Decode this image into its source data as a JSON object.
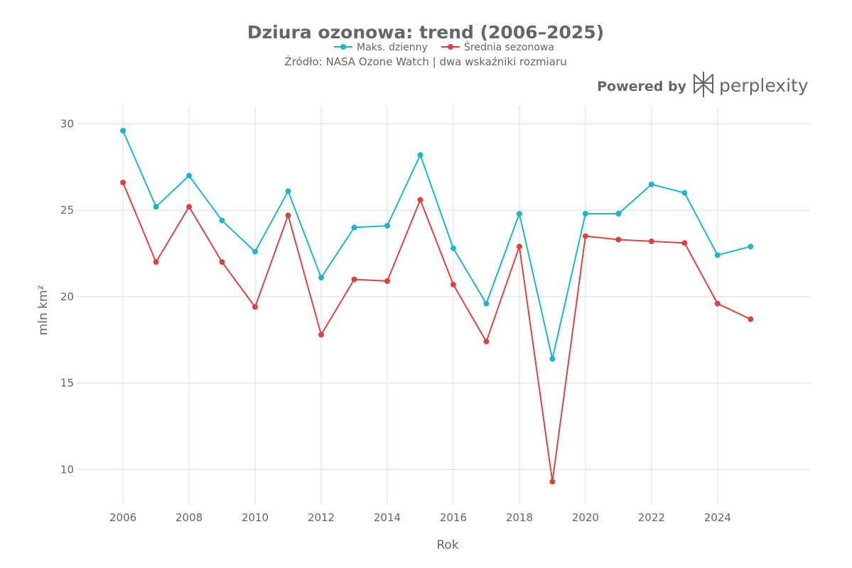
{
  "colors": {
    "series_max": "#1fb4c8",
    "series_mean": "#d64545",
    "text": "#666666",
    "grid": "#dcdcdc"
  },
  "branding": {
    "powered_by": "Powered by",
    "name": "perplexity",
    "icon": "perplexity-logo-icon"
  },
  "chart_data": {
    "type": "line",
    "title": "Dziura ozonowa: trend (2006–2025)",
    "subtitle": "Źródło: NASA Ozone Watch | dwa wskaźniki rozmiaru",
    "xlabel": "Rok",
    "ylabel": "mln km²",
    "xlim": [
      2004.6,
      2026.8
    ],
    "ylim": [
      8.0,
      31.0
    ],
    "x_ticks": [
      2006,
      2008,
      2010,
      2012,
      2014,
      2016,
      2018,
      2020,
      2022,
      2024
    ],
    "y_ticks": [
      10,
      15,
      20,
      25,
      30
    ],
    "grid": true,
    "legend_position": "top-center",
    "x": [
      2006,
      2007,
      2008,
      2009,
      2010,
      2011,
      2012,
      2013,
      2014,
      2015,
      2016,
      2017,
      2018,
      2019,
      2020,
      2021,
      2022,
      2023,
      2024,
      2025
    ],
    "series": [
      {
        "name": "Maks. dzienny",
        "color": "#1fb4c8",
        "values": [
          29.6,
          25.2,
          27.0,
          24.4,
          22.6,
          26.1,
          21.1,
          24.0,
          24.1,
          28.2,
          22.8,
          19.6,
          24.8,
          16.4,
          24.8,
          24.8,
          26.5,
          26.0,
          22.4,
          22.9
        ]
      },
      {
        "name": "Średnia sezonowa",
        "color": "#d64545",
        "values": [
          26.6,
          22.0,
          25.2,
          22.0,
          19.4,
          24.7,
          17.8,
          21.0,
          20.9,
          25.6,
          20.7,
          17.4,
          22.9,
          9.3,
          23.5,
          23.3,
          23.2,
          23.1,
          19.6,
          18.7
        ]
      }
    ]
  }
}
